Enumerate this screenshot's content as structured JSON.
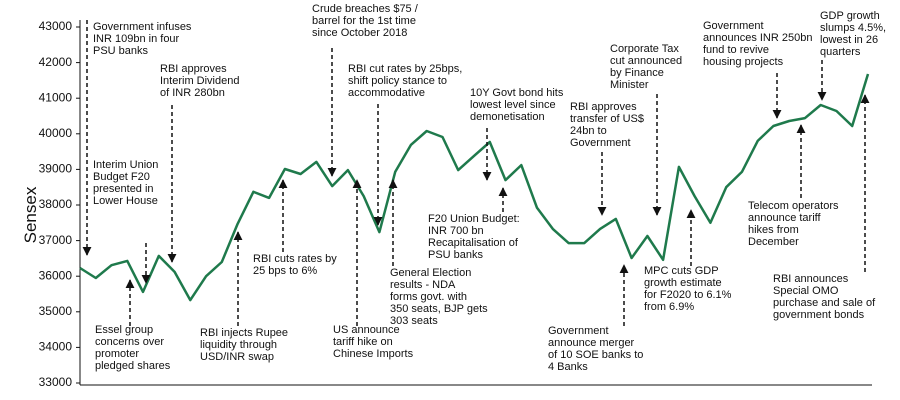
{
  "chart_data": {
    "type": "line",
    "y_label": "Sensex",
    "color": "#1f7a4c",
    "ylim": [
      33000,
      43000
    ],
    "yticks": [
      33000,
      34000,
      35000,
      36000,
      37000,
      38000,
      39000,
      40000,
      41000,
      42000,
      43000
    ],
    "grid": false,
    "values": [
      36230,
      35950,
      36310,
      36430,
      35560,
      36570,
      36120,
      35330,
      36000,
      36400,
      37470,
      38370,
      38200,
      39010,
      38870,
      39210,
      38530,
      38980,
      38250,
      37240,
      38930,
      39690,
      40080,
      39910,
      38980,
      39380,
      39770,
      38700,
      39120,
      37920,
      37330,
      36930,
      36930,
      37330,
      37610,
      36510,
      37130,
      36460,
      39070,
      38250,
      37500,
      38500,
      38930,
      39800,
      40220,
      40360,
      40440,
      40810,
      40640,
      40220,
      41680
    ],
    "annotations": [
      [
        "Government infuses",
        "INR 109bn in four",
        "PSU banks"
      ],
      [
        "Interim Union",
        "Budget F20",
        "presented in",
        "Lower House"
      ],
      [
        "RBI approves",
        "Interim Dividend",
        "of INR 280bn"
      ],
      [
        "Essel group",
        "concerns over",
        "promoter",
        "pledged shares"
      ],
      [
        "RBI injects Rupee",
        "liquidity through",
        "USD/INR swap"
      ],
      [
        "RBI cuts rates by",
        "25 bps to 6%"
      ],
      [
        "Crude breaches $75 /",
        "barrel for the 1st time",
        "since October 2018"
      ],
      [
        "RBI cut rates by 25bps,",
        "shift policy stance to",
        "accommodative"
      ],
      [
        "US announce",
        "tariff hike on",
        "Chinese Imports"
      ],
      [
        "General Election",
        "results - NDA",
        "forms govt. with",
        "350 seats, BJP gets",
        "303 seats"
      ],
      [
        "10Y Govt bond hits",
        "lowest level since",
        "demonetisation"
      ],
      [
        "F20 Union Budget:",
        "INR 700 bn",
        "Recapitalisation of",
        "PSU banks"
      ],
      [
        "RBI approves",
        "transfer of US$",
        "24bn to",
        "Government"
      ],
      [
        "Corporate Tax",
        "cut announced",
        "by Finance",
        "Minister"
      ],
      [
        "Government",
        "announce merger",
        "of 10 SOE banks to",
        "4 Banks"
      ],
      [
        "MPC cuts GDP",
        "growth estimate",
        "for F2020 to 6.1%",
        "from 6.9%"
      ],
      [
        "Government",
        "announces INR 250bn",
        "fund to revive",
        "housing projects"
      ],
      [
        "GDP growth",
        "slumps 4.5%,",
        "lowest in 26",
        "quarters"
      ],
      [
        "Telecom operators",
        "announce tariff",
        "hikes from",
        "December"
      ],
      [
        "RBI announces",
        "Special OMO",
        "purchase and sale of",
        "government bonds"
      ]
    ]
  }
}
